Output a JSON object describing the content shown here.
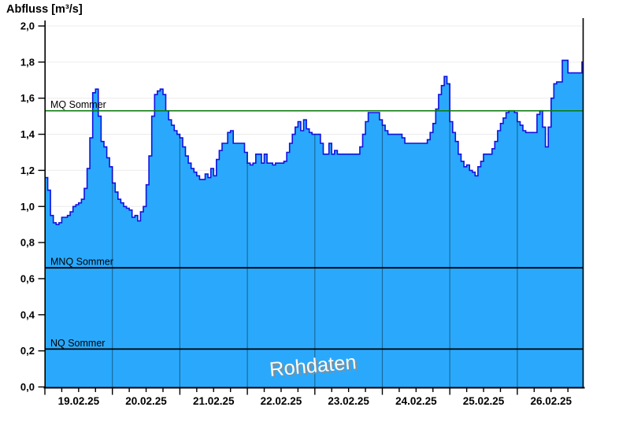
{
  "chart_data": {
    "type": "area",
    "title": "Abfluss [m³/s]",
    "watermark": "Rohdaten",
    "ylim": [
      0.0,
      2.0
    ],
    "y_tick_labels": [
      "0,0",
      "0,2",
      "0,4",
      "0,6",
      "0,8",
      "1,0",
      "1,2",
      "1,4",
      "1,6",
      "1,8",
      "2,0"
    ],
    "y_tick_step": 0.2,
    "x_axis": {
      "tick_labels": [
        "19.02.25",
        "20.02.25",
        "21.02.25",
        "22.02.25",
        "23.02.25",
        "24.02.25",
        "25.02.25",
        "26.02.25"
      ],
      "minor_ticks_per_day": 4,
      "interval_hours": 1,
      "days_visible": 7.97
    },
    "grid": "horizontal-light, vertical-day-lines-inside-area",
    "legend_position": "none",
    "reference_lines": [
      {
        "label": "MQ Sommer",
        "value": 1.53,
        "color": "#067806",
        "width": 1.4
      },
      {
        "label": "MNQ Sommer",
        "value": 0.66,
        "color": "#000000",
        "width": 1.8
      },
      {
        "label": "NQ Sommer",
        "value": 0.21,
        "color": "#000000",
        "width": 1.8
      }
    ],
    "series": [
      {
        "name": "Abfluss Rohdaten",
        "unit": "m³/s",
        "start": "19.02.25 00:00",
        "step_hours": 1,
        "values": [
          1.16,
          1.09,
          0.95,
          0.91,
          0.9,
          0.91,
          0.94,
          0.94,
          0.95,
          0.97,
          1.0,
          1.01,
          1.02,
          1.04,
          1.1,
          1.21,
          1.38,
          1.63,
          1.65,
          1.5,
          1.36,
          1.33,
          1.27,
          1.22,
          1.13,
          1.08,
          1.04,
          1.02,
          1.0,
          0.99,
          0.98,
          0.94,
          0.95,
          0.92,
          0.97,
          1.0,
          1.12,
          1.28,
          1.5,
          1.62,
          1.64,
          1.65,
          1.62,
          1.53,
          1.48,
          1.45,
          1.42,
          1.4,
          1.38,
          1.33,
          1.28,
          1.24,
          1.21,
          1.19,
          1.17,
          1.15,
          1.15,
          1.18,
          1.16,
          1.21,
          1.17,
          1.26,
          1.31,
          1.35,
          1.35,
          1.41,
          1.42,
          1.35,
          1.35,
          1.35,
          1.35,
          1.3,
          1.24,
          1.23,
          1.24,
          1.29,
          1.29,
          1.24,
          1.29,
          1.24,
          1.24,
          1.23,
          1.24,
          1.24,
          1.24,
          1.25,
          1.3,
          1.35,
          1.4,
          1.44,
          1.47,
          1.42,
          1.48,
          1.43,
          1.41,
          1.4,
          1.4,
          1.4,
          1.35,
          1.29,
          1.29,
          1.35,
          1.29,
          1.31,
          1.29,
          1.29,
          1.29,
          1.29,
          1.29,
          1.29,
          1.29,
          1.29,
          1.33,
          1.4,
          1.47,
          1.52,
          1.52,
          1.52,
          1.52,
          1.48,
          1.45,
          1.42,
          1.4,
          1.4,
          1.4,
          1.4,
          1.4,
          1.38,
          1.35,
          1.35,
          1.35,
          1.35,
          1.35,
          1.35,
          1.35,
          1.35,
          1.37,
          1.41,
          1.46,
          1.54,
          1.62,
          1.67,
          1.72,
          1.68,
          1.47,
          1.41,
          1.36,
          1.29,
          1.25,
          1.22,
          1.23,
          1.2,
          1.19,
          1.17,
          1.22,
          1.25,
          1.29,
          1.29,
          1.29,
          1.32,
          1.36,
          1.42,
          1.46,
          1.49,
          1.52,
          1.53,
          1.53,
          1.52,
          1.47,
          1.45,
          1.42,
          1.41,
          1.41,
          1.41,
          1.41,
          1.51,
          1.53,
          1.44,
          1.33,
          1.44,
          1.6,
          1.68,
          1.69,
          1.69,
          1.81,
          1.81,
          1.74,
          1.74,
          1.74,
          1.74,
          1.74,
          1.8
        ]
      }
    ],
    "colors": {
      "area_fill": "#2AA9FC",
      "area_stroke": "#1212E0",
      "grid_horizontal": "#ececec",
      "grid_vertical_over_area": "rgba(0,0,0,0.38)",
      "axis": "#000000",
      "watermark_fill": "#fbfbfb",
      "watermark_shadow": "#8c8c8c"
    }
  }
}
